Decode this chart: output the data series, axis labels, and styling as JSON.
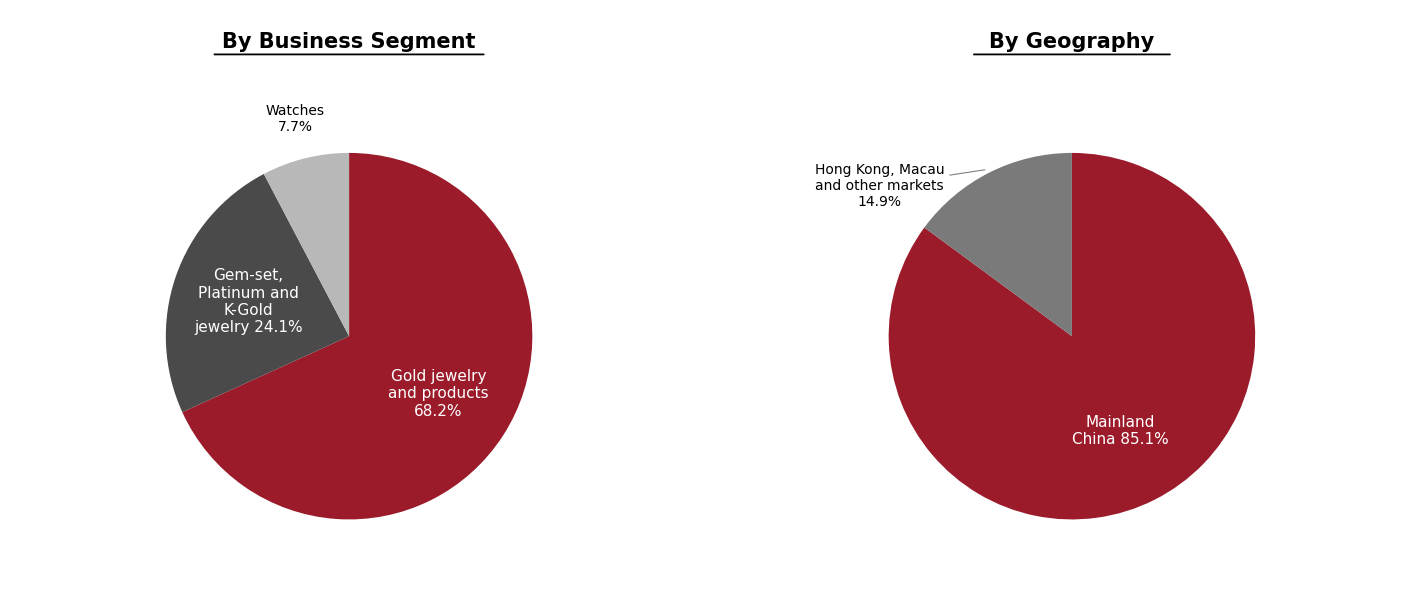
{
  "chart1_title": "By Business Segment",
  "chart2_title": "By Geography",
  "chart1_slices": [
    68.2,
    24.1,
    7.7
  ],
  "chart1_colors": [
    "#9B1B2A",
    "#4A4A4A",
    "#B8B8B8"
  ],
  "chart1_startangle": 90,
  "chart2_slices": [
    85.1,
    14.9
  ],
  "chart2_colors": [
    "#9B1B2A",
    "#7A7A7A"
  ],
  "chart2_startangle": 90,
  "bg_color": "#FFFFFF",
  "title_fontsize": 15,
  "label_fontsize_inside": 11,
  "label_fontsize_outside": 10,
  "watches_label": "Watches\n7.7%",
  "gemset_label": "Gem-set,\nPlatinum and\nK-Gold\njewelry 24.1%",
  "gold_label": "Gold jewelry\nand products\n68.2%",
  "mainland_label": "Mainland\nChina 85.1%",
  "hk_label": "Hong Kong, Macau\nand other markets\n14.9%"
}
